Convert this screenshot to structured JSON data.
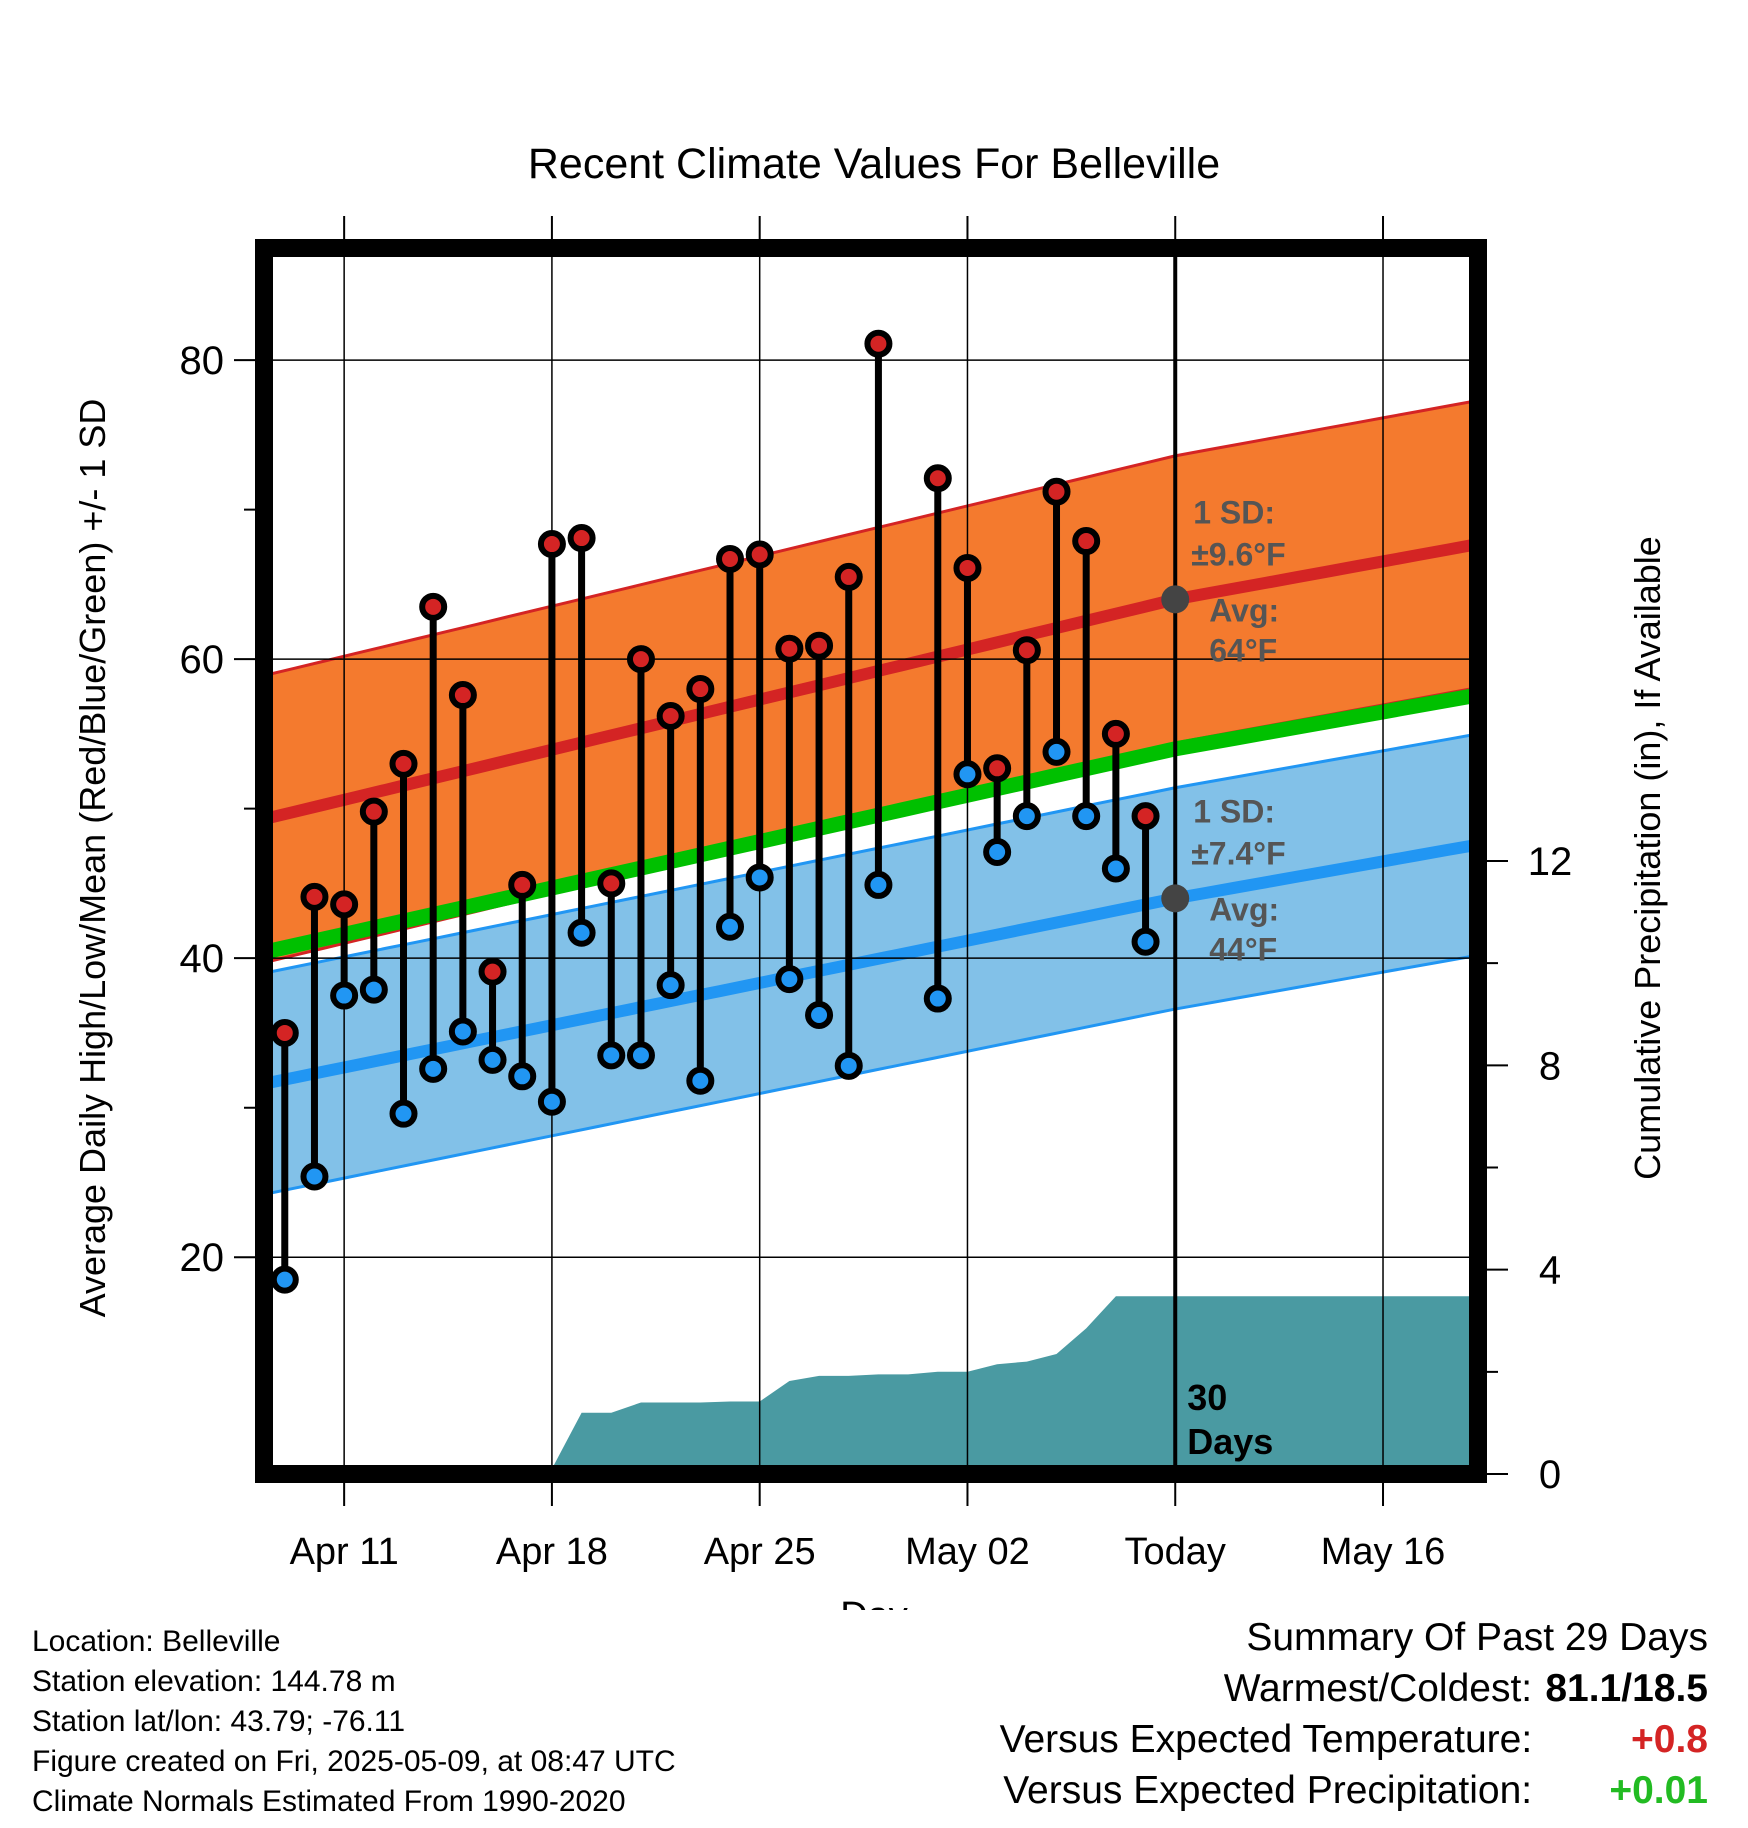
{
  "chart_data": {
    "type": "line",
    "title": "Recent Climate Values For Belleville",
    "xlabel": "Day",
    "ylabel": "Average Daily High/Low/Mean (Red/Blue/Green) +/- 1 SD",
    "y2label": "Cumulative Precipitation (in), If Available",
    "ylim": [
      5.5,
      87.5
    ],
    "y_ticks": [
      20,
      40,
      60,
      80
    ],
    "y2lim": [
      0,
      24
    ],
    "y2_ticks": [
      0,
      4,
      8,
      12
    ],
    "x_ticks": [
      "Apr 11",
      "Apr 18",
      "Apr 25",
      "May 02",
      "Today",
      "May 16"
    ],
    "x_tick_days": [
      11,
      18,
      25,
      32,
      39,
      46
    ],
    "xlim": [
      8.3,
      49.2
    ],
    "today_day": 39,
    "days_label": "30\nDays",
    "grid": true,
    "colors": {
      "high": "#d42424",
      "low": "#2196f3",
      "mean": "#00c000",
      "high_band": "#f47a2e",
      "low_band": "#82c1e8",
      "precip": "#4a9aa2",
      "marker_dot": "#444444"
    },
    "normals": {
      "high_avg": [
        [
          8.3,
          49.3
        ],
        [
          39,
          64
        ],
        [
          49.2,
          67.7
        ]
      ],
      "high_sd": 9.6,
      "low_avg": [
        [
          8.3,
          31.6
        ],
        [
          39,
          44
        ],
        [
          49.2,
          47.6
        ]
      ],
      "low_sd": 7.4,
      "mean_avg": [
        [
          8.3,
          40.4
        ],
        [
          39,
          54
        ],
        [
          49.2,
          57.6
        ]
      ]
    },
    "annotations": [
      {
        "sd_label": "1 SD:",
        "sd_value": "±9.6°F",
        "avg_label": "Avg:",
        "avg_value": "64°F",
        "y": 64
      },
      {
        "sd_label": "1 SD:",
        "sd_value": "±7.4°F",
        "avg_label": "Avg:",
        "avg_value": "44°F",
        "y": 44
      }
    ],
    "daily": {
      "day": [
        9,
        10,
        11,
        12,
        13,
        14,
        15,
        16,
        17,
        18,
        19,
        20,
        21,
        22,
        23,
        24,
        25,
        26,
        27,
        28,
        29,
        31,
        32,
        33,
        34,
        35,
        36,
        37,
        38
      ],
      "high": [
        35.0,
        44.1,
        43.6,
        49.8,
        53.0,
        63.5,
        57.6,
        39.1,
        44.9,
        67.7,
        68.1,
        45.0,
        60.0,
        56.2,
        58.0,
        66.7,
        67.0,
        60.7,
        60.9,
        65.5,
        81.1,
        72.1,
        66.1,
        52.7,
        60.6,
        71.2,
        67.9,
        55.0,
        49.5
      ],
      "low": [
        18.5,
        25.4,
        37.5,
        37.9,
        29.6,
        32.6,
        35.1,
        33.2,
        32.1,
        30.4,
        41.7,
        33.5,
        33.5,
        38.2,
        31.8,
        42.1,
        45.4,
        38.6,
        36.2,
        32.8,
        44.9,
        37.3,
        52.3,
        47.1,
        49.5,
        53.8,
        49.5,
        46.0,
        41.1
      ]
    },
    "precip_cumulative": {
      "day": [
        8.3,
        11,
        18,
        19,
        20,
        21,
        22,
        23,
        24,
        25,
        26,
        27,
        28,
        29,
        30,
        31,
        32,
        33,
        34,
        35,
        36,
        37,
        38,
        49.2
      ],
      "value": [
        0.0,
        0.02,
        0.1,
        1.2,
        1.2,
        1.4,
        1.4,
        1.4,
        1.42,
        1.42,
        1.82,
        1.92,
        1.92,
        1.95,
        1.95,
        2.0,
        2.0,
        2.15,
        2.2,
        2.35,
        2.85,
        3.48,
        3.48,
        3.48
      ]
    }
  },
  "footer": {
    "location": "Location: Belleville",
    "elevation": "Station elevation: 144.78 m",
    "latlon": "Station lat/lon: 43.79; -76.11",
    "created": "Figure created on Fri, 2025-05-09, at 08:47 UTC",
    "normals": "Climate Normals Estimated From 1990-2020"
  },
  "summary": {
    "heading": "Summary Of Past 29 Days",
    "warmest_coldest_label": "Warmest/Coldest:",
    "warmest_coldest_value": "81.1/18.5",
    "temp_label": "Versus Expected Temperature:",
    "temp_value": "+0.8",
    "temp_color": "#d42424",
    "precip_label": "Versus Expected Precipitation:",
    "precip_value": "+0.01",
    "precip_color": "#22bb22"
  }
}
